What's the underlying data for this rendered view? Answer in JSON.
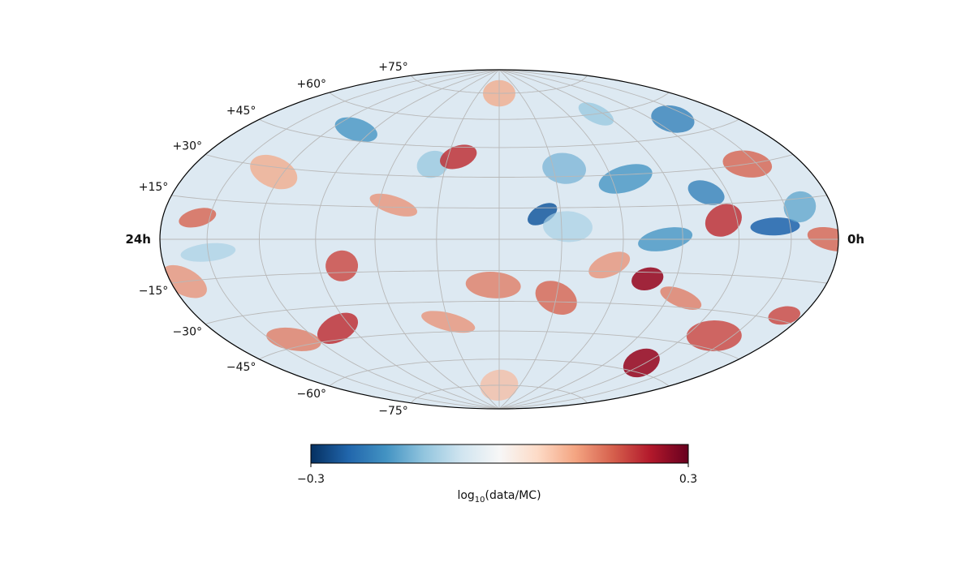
{
  "chart_data": {
    "type": "heatmap",
    "projection": "hammer-aitoff",
    "title": "",
    "ra_labels": {
      "left": "24h",
      "right": "0h"
    },
    "ra_range_h": [
      24,
      0
    ],
    "dec_range_deg": [
      -90,
      90
    ],
    "ra_grid_step_h": 2,
    "dec_grid_deg": [
      -75,
      -60,
      -45,
      -30,
      -15,
      0,
      15,
      30,
      45,
      60,
      75
    ],
    "dec_tick_labels": [
      {
        "dec": 75,
        "text": "+75°"
      },
      {
        "dec": 60,
        "text": "+60°"
      },
      {
        "dec": 45,
        "text": "+45°"
      },
      {
        "dec": 30,
        "text": "+30°"
      },
      {
        "dec": 15,
        "text": "+15°"
      },
      {
        "dec": -15,
        "text": "−15°"
      },
      {
        "dec": -30,
        "text": "−30°"
      },
      {
        "dec": -45,
        "text": "−45°"
      },
      {
        "dec": -60,
        "text": "−60°"
      },
      {
        "dec": -75,
        "text": "−75°"
      }
    ],
    "grid": true,
    "colormap": "RdBu_r",
    "colorbar": {
      "orientation": "horizontal",
      "min": -0.3,
      "max": 0.3,
      "tick_labels": [
        "−0.3",
        "0.3"
      ],
      "label": "log10(data/MC)",
      "label_base": "log",
      "label_sub": "10",
      "label_rest": "(data/MC)"
    },
    "colors": {
      "min": "#053061",
      "neutral": "#f7f7f7",
      "max": "#67001f"
    },
    "features": [
      {
        "ra_h": 10.6,
        "dec": 12,
        "value": -0.25
      },
      {
        "ra_h": 9.6,
        "dec": 34,
        "value": -0.14
      },
      {
        "ra_h": 7.5,
        "dec": 28,
        "value": -0.18
      },
      {
        "ra_h": 4.8,
        "dec": 20,
        "value": -0.2
      },
      {
        "ra_h": 2.6,
        "dec": 5,
        "value": -0.24
      },
      {
        "ra_h": 1.4,
        "dec": 12,
        "value": -0.16
      },
      {
        "ra_h": 3.0,
        "dec": 52,
        "value": -0.2
      },
      {
        "ra_h": 6.6,
        "dec": 0,
        "value": -0.18
      },
      {
        "ra_h": 6.4,
        "dec": 60,
        "value": -0.12
      },
      {
        "ra_h": 9.8,
        "dec": 6,
        "value": -0.1
      },
      {
        "ra_h": 14.5,
        "dec": 36,
        "value": -0.12
      },
      {
        "ra_h": 18.8,
        "dec": 50,
        "value": -0.18
      },
      {
        "ra_h": 22.0,
        "dec": -5,
        "value": -0.1
      },
      {
        "ra_h": 4.5,
        "dec": 8,
        "value": 0.22
      },
      {
        "ra_h": 2.4,
        "dec": 30,
        "value": 0.18
      },
      {
        "ra_h": 7.0,
        "dec": -18,
        "value": 0.26
      },
      {
        "ra_h": 5.5,
        "dec": -26,
        "value": 0.16
      },
      {
        "ra_h": 2.8,
        "dec": -40,
        "value": 0.2
      },
      {
        "ra_h": 4.2,
        "dec": -56,
        "value": 0.26
      },
      {
        "ra_h": 0.3,
        "dec": 0,
        "value": 0.18
      },
      {
        "ra_h": 0.8,
        "dec": -28,
        "value": 0.2
      },
      {
        "ra_h": 10.0,
        "dec": -28,
        "value": 0.18
      },
      {
        "ra_h": 12.2,
        "dec": -22,
        "value": 0.16
      },
      {
        "ra_h": 13.6,
        "dec": 40,
        "value": 0.22
      },
      {
        "ra_h": 15.5,
        "dec": 16,
        "value": 0.14
      },
      {
        "ra_h": 17.2,
        "dec": -12,
        "value": 0.2
      },
      {
        "ra_h": 18.6,
        "dec": -40,
        "value": 0.22
      },
      {
        "ra_h": 21.0,
        "dec": -42,
        "value": 0.16
      },
      {
        "ra_h": 22.5,
        "dec": 8,
        "value": 0.18
      },
      {
        "ra_h": 20.4,
        "dec": 28,
        "value": 0.12
      },
      {
        "ra_h": 12.0,
        "dec": 75,
        "value": 0.12
      },
      {
        "ra_h": 8.4,
        "dec": -12,
        "value": 0.14
      },
      {
        "ra_h": 14.0,
        "dec": -40,
        "value": 0.14
      },
      {
        "ra_h": 12.0,
        "dec": -75,
        "value": 0.1
      },
      {
        "ra_h": 23.4,
        "dec": -15,
        "value": 0.14
      }
    ]
  }
}
